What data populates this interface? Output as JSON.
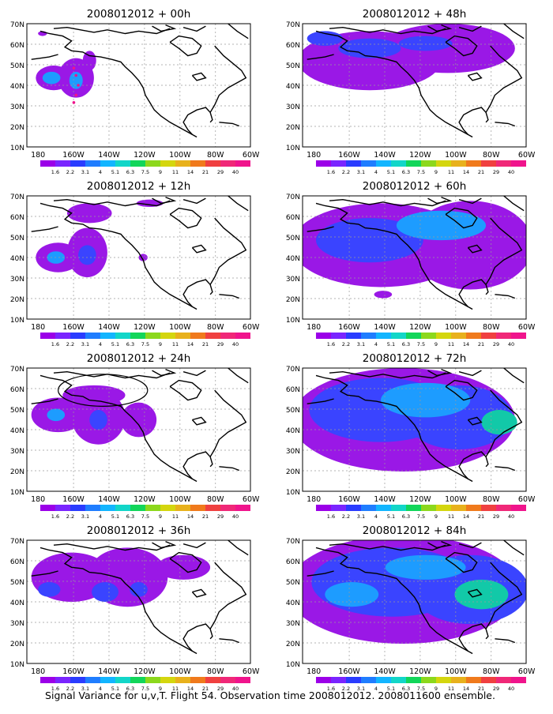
{
  "panels": [
    {
      "id": "p00",
      "title": "2008012012 + 00h",
      "col": 0,
      "row": 0
    },
    {
      "id": "p48",
      "title": "2008012012 + 48h",
      "col": 1,
      "row": 0
    },
    {
      "id": "p12",
      "title": "2008012012 + 12h",
      "col": 0,
      "row": 1
    },
    {
      "id": "p60",
      "title": "2008012012 + 60h",
      "col": 1,
      "row": 1
    },
    {
      "id": "p24",
      "title": "2008012012 + 24h",
      "col": 0,
      "row": 2
    },
    {
      "id": "p72",
      "title": "2008012012 + 72h",
      "col": 1,
      "row": 2
    },
    {
      "id": "p36",
      "title": "2008012012 + 36h",
      "col": 0,
      "row": 3
    },
    {
      "id": "p84",
      "title": "2008012012 + 84h",
      "col": 1,
      "row": 3
    }
  ],
  "axes": {
    "lat_labels": [
      "70N",
      "60N",
      "50N",
      "40N",
      "30N",
      "20N",
      "10N"
    ],
    "lon_labels": [
      "180",
      "160W",
      "140W",
      "120W",
      "100W",
      "80W",
      "60W"
    ]
  },
  "colorbar": {
    "labels": [
      "1.6",
      "2.2",
      "3.1",
      "4",
      "5.1",
      "6.3",
      "7.5",
      "9",
      "11",
      "14",
      "21",
      "29",
      "40"
    ],
    "colors": [
      "#9b00e8",
      "#7a25ff",
      "#2a3cff",
      "#1f7dff",
      "#12b5ff",
      "#12d6c8",
      "#12d65a",
      "#8cd81c",
      "#d4d60e",
      "#e8b11c",
      "#f07a1c",
      "#f04040",
      "#f02878",
      "#f0148c"
    ]
  },
  "footer": "Signal Variance for u,v,T. Flight 54. Observation time 2008012012. 2008011600 ensemble."
}
